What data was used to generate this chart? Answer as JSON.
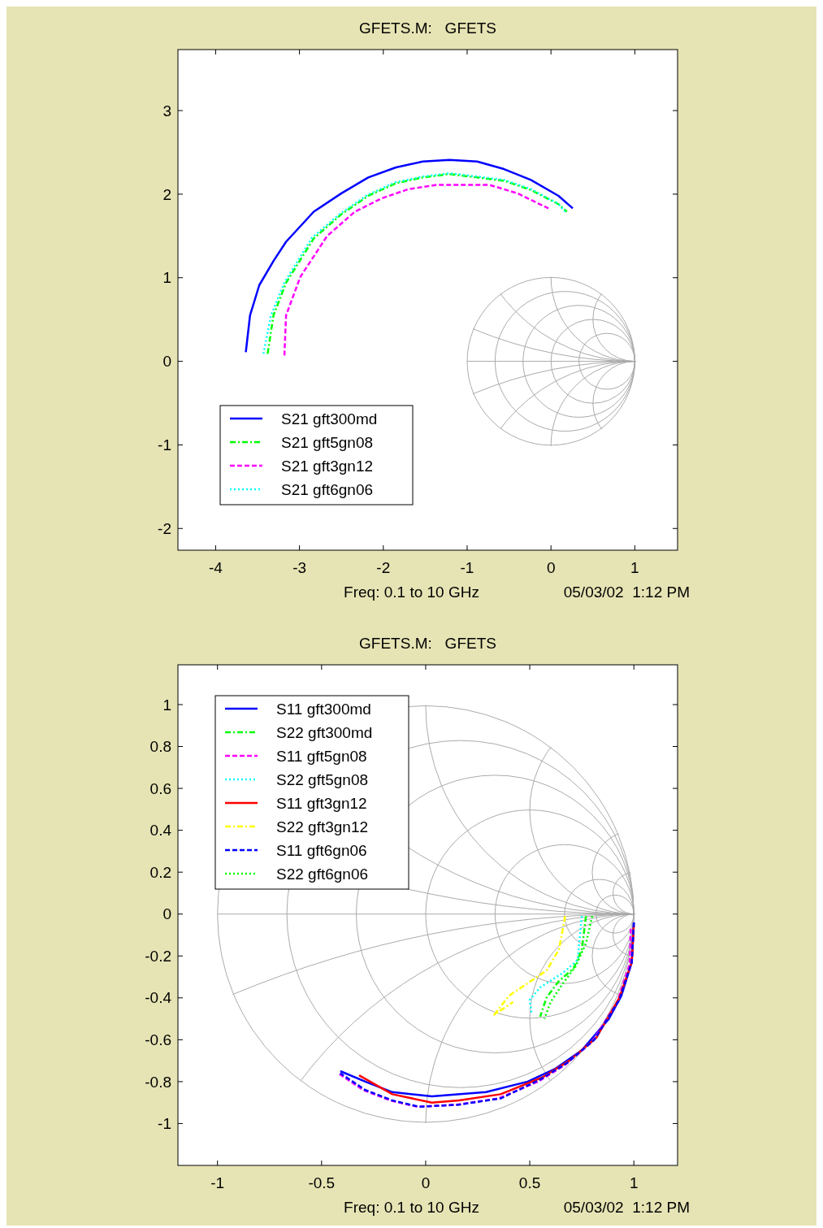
{
  "chart_data": [
    {
      "type": "line",
      "title": "GFETS.M:   GFETS",
      "xlim": [
        -4.45,
        1.51
      ],
      "ylim": [
        -2.26,
        3.73
      ],
      "xticks": [
        -4,
        -3,
        -2,
        -1,
        0,
        1
      ],
      "yticks": [
        -2,
        -1,
        0,
        1,
        2,
        3
      ],
      "legend": "bottom left",
      "annotations": [
        "Freq: 0.1 to 10 GHz",
        "05/03/02  1:12 PM"
      ],
      "series": [
        {
          "name": "S21 gft300md",
          "color": "#0000ff",
          "line_style": "solid",
          "x": [
            -3.64,
            -3.59,
            -3.48,
            -3.31,
            -3.16,
            -2.83,
            -2.5,
            -2.18,
            -1.85,
            -1.53,
            -1.21,
            -0.88,
            -0.56,
            -0.24,
            0.09,
            0.26
          ],
          "values": [
            0.11,
            0.55,
            0.91,
            1.2,
            1.43,
            1.79,
            2.01,
            2.2,
            2.32,
            2.39,
            2.41,
            2.39,
            2.3,
            2.17,
            1.98,
            1.83
          ]
        },
        {
          "name": "S21 gft5gn08",
          "color": "#00ff00",
          "line_style": "dashdot",
          "x": [
            -3.38,
            -3.31,
            -3.16,
            -2.83,
            -2.5,
            -2.18,
            -1.85,
            -1.53,
            -1.21,
            -0.88,
            -0.56,
            -0.24,
            0.09,
            0.19
          ],
          "values": [
            0.09,
            0.55,
            0.94,
            1.47,
            1.76,
            1.98,
            2.13,
            2.2,
            2.24,
            2.2,
            2.16,
            2.05,
            1.88,
            1.79
          ]
        },
        {
          "name": "S21 gft3gn12",
          "color": "#ff00ff",
          "line_style": "dashed",
          "x": [
            -3.18,
            -3.16,
            -2.99,
            -2.67,
            -2.34,
            -2.02,
            -1.7,
            -1.37,
            -1.05,
            -0.73,
            -0.4,
            -0.03
          ],
          "values": [
            0.07,
            0.55,
            1.01,
            1.5,
            1.79,
            1.95,
            2.06,
            2.11,
            2.11,
            2.11,
            2.01,
            1.83
          ]
        },
        {
          "name": "S21 gft6gn06",
          "color": "#00ffff",
          "line_style": "dotted",
          "x": [
            -3.43,
            -3.34,
            -3.18,
            -2.85,
            -2.51,
            -2.19,
            -1.86,
            -1.53,
            -1.21,
            -0.88,
            -0.56,
            -0.24,
            0.08,
            0.18
          ],
          "values": [
            0.09,
            0.55,
            0.94,
            1.48,
            1.77,
            1.99,
            2.14,
            2.21,
            2.25,
            2.21,
            2.17,
            2.06,
            1.89,
            1.78
          ]
        }
      ]
    },
    {
      "type": "line",
      "title": "GFETS.M:   GFETS",
      "xlim": [
        -1.19,
        1.21
      ],
      "ylim": [
        -1.2,
        1.19
      ],
      "xticks": [
        -1,
        -0.5,
        0,
        0.5,
        1
      ],
      "yticks": [
        -1,
        -0.8,
        -0.6,
        -0.4,
        -0.2,
        0,
        0.2,
        0.4,
        0.6,
        0.8,
        1
      ],
      "legend": "top left",
      "annotations": [
        "Freq: 0.1 to 10 GHz",
        "05/03/02  1:12 PM"
      ],
      "series": [
        {
          "name": "S11 gft300md",
          "color": "#0000ff",
          "line_style": "solid",
          "x": [
            1.0,
            0.99,
            0.94,
            0.88,
            0.75,
            0.62,
            0.49,
            0.29,
            0.03,
            -0.16,
            -0.29,
            -0.41
          ],
          "values": [
            -0.04,
            -0.23,
            -0.39,
            -0.5,
            -0.65,
            -0.74,
            -0.8,
            -0.85,
            -0.87,
            -0.85,
            -0.8,
            -0.75
          ]
        },
        {
          "name": "S22 gft300md",
          "color": "#00ff00",
          "line_style": "dashdot",
          "x": [
            0.77,
            0.75,
            0.71,
            0.64,
            0.58,
            0.55
          ],
          "values": [
            -0.01,
            -0.17,
            -0.26,
            -0.32,
            -0.4,
            -0.49
          ]
        },
        {
          "name": "S11 gft5gn08",
          "color": "#ff00ff",
          "line_style": "dashed",
          "x": [
            0.985,
            0.98,
            0.92,
            0.8,
            0.67,
            0.54,
            0.35,
            0.15,
            -0.04,
            -0.17,
            -0.3,
            -0.42
          ],
          "values": [
            -0.07,
            -0.24,
            -0.42,
            -0.61,
            -0.72,
            -0.8,
            -0.88,
            -0.91,
            -0.92,
            -0.89,
            -0.84,
            -0.76
          ]
        },
        {
          "name": "S22 gft5gn08",
          "color": "#00ffff",
          "line_style": "dotted",
          "x": [
            0.75,
            0.73,
            0.66,
            0.55,
            0.5,
            0.51
          ],
          "values": [
            -0.01,
            -0.22,
            -0.28,
            -0.35,
            -0.41,
            -0.48
          ]
        },
        {
          "name": "S11 gft3gn12",
          "color": "#ff0000",
          "line_style": "solid",
          "x": [
            1.0,
            0.99,
            0.93,
            0.82,
            0.69,
            0.56,
            0.36,
            0.16,
            0.03,
            -0.16,
            -0.32
          ],
          "values": [
            -0.05,
            -0.23,
            -0.4,
            -0.59,
            -0.7,
            -0.78,
            -0.86,
            -0.89,
            -0.9,
            -0.86,
            -0.77
          ]
        },
        {
          "name": "S22 gft3gn12",
          "color": "#ffff00",
          "line_style": "dashdot",
          "x": [
            0.67,
            0.64,
            0.58,
            0.49,
            0.4,
            0.33,
            0.42
          ],
          "values": [
            -0.01,
            -0.17,
            -0.27,
            -0.33,
            -0.39,
            -0.48,
            -0.42
          ]
        },
        {
          "name": "S11 gft6gn06",
          "color": "#0000ff",
          "line_style": "dashed",
          "x": [
            1.0,
            0.99,
            0.93,
            0.81,
            0.68,
            0.55,
            0.36,
            0.16,
            -0.03,
            -0.16,
            -0.29,
            -0.41
          ],
          "values": [
            -0.04,
            -0.23,
            -0.41,
            -0.6,
            -0.71,
            -0.79,
            -0.88,
            -0.91,
            -0.92,
            -0.89,
            -0.84,
            -0.76
          ]
        },
        {
          "name": "S22 gft6gn06",
          "color": "#00ff00",
          "line_style": "dotted",
          "x": [
            0.8,
            0.77,
            0.72,
            0.66,
            0.6,
            0.57
          ],
          "values": [
            -0.01,
            -0.14,
            -0.25,
            -0.33,
            -0.42,
            -0.5
          ]
        }
      ]
    }
  ]
}
